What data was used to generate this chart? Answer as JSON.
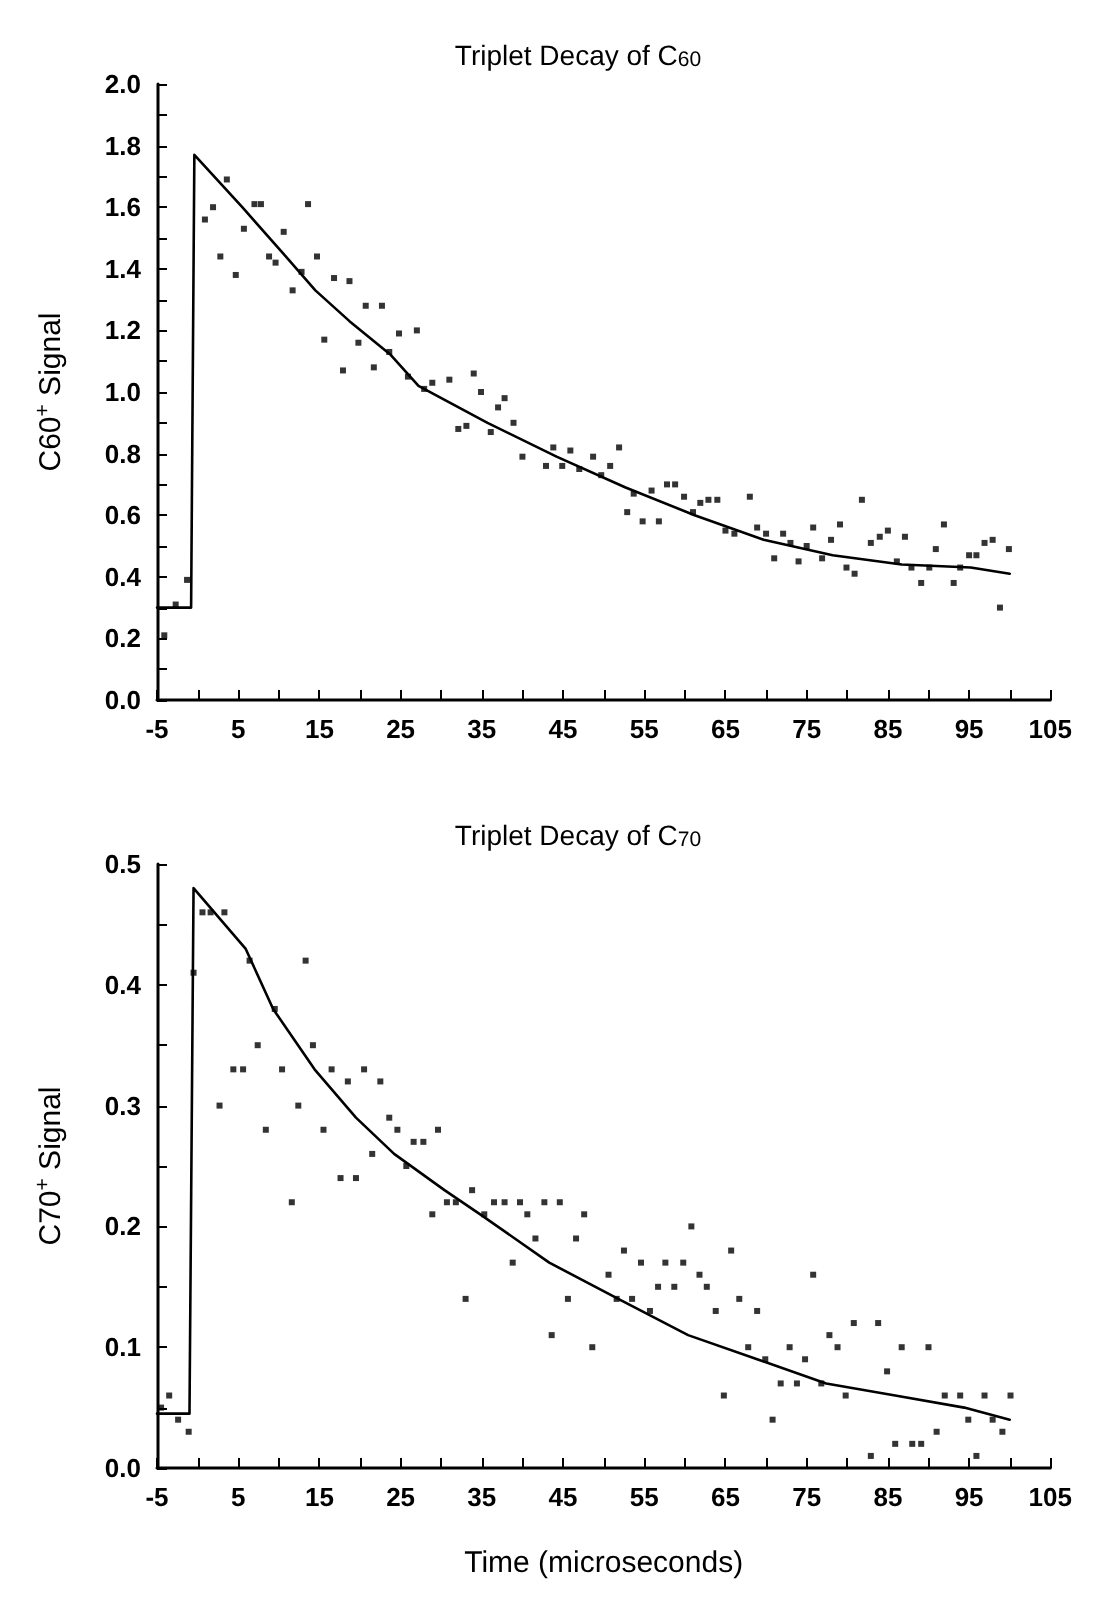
{
  "chart_data": [
    {
      "type": "scatter",
      "title": "Triplet Decay of C$_{60}$",
      "ylabel": "C60$^{+}$ Signal",
      "marker": "square",
      "xlim": [
        -5,
        105
      ],
      "xticks": [
        -5,
        {
          "value": 0,
          "label": null
        },
        5,
        {
          "value": 10,
          "label": null
        },
        15,
        {
          "value": 20,
          "label": null
        },
        25,
        {
          "value": 30,
          "label": null
        },
        35,
        {
          "value": 40,
          "label": null
        },
        45,
        {
          "value": 50,
          "label": null
        },
        55,
        {
          "value": 60,
          "label": null
        },
        65,
        {
          "value": 70,
          "label": null
        },
        75,
        {
          "value": 80,
          "label": null
        },
        85,
        {
          "value": 90,
          "label": null
        },
        95,
        {
          "value": 100,
          "label": null
        },
        105
      ],
      "ylim": [
        0,
        2
      ],
      "yticks": [
        {
          "value": 0,
          "label": "0.0"
        },
        {
          "value": 0.1,
          "label": null
        },
        {
          "value": 0.2,
          "label": "0.2"
        },
        {
          "value": 0.3,
          "label": null
        },
        {
          "value": 0.4,
          "label": "0.4"
        },
        {
          "value": 0.5,
          "label": null
        },
        {
          "value": 0.6,
          "label": "0.6"
        },
        {
          "value": 0.7,
          "label": null
        },
        {
          "value": 0.8,
          "label": "0.8"
        },
        {
          "value": 0.9,
          "label": null
        },
        {
          "value": 1,
          "label": "1.0"
        },
        {
          "value": 1.1,
          "label": null
        },
        {
          "value": 1.2,
          "label": "1.2"
        },
        {
          "value": 1.3,
          "label": null
        },
        {
          "value": 1.4,
          "label": "1.4"
        },
        {
          "value": 1.5,
          "label": null
        },
        {
          "value": 1.6,
          "label": "1.6"
        },
        {
          "value": 1.7,
          "label": null
        },
        {
          "value": 1.8,
          "label": "1.8"
        },
        {
          "value": 1.9,
          "label": null
        },
        {
          "value": 2,
          "label": "2.0"
        }
      ],
      "series": [
        {
          "color": "#000000",
          "x": [
            -4.1,
            -2.7,
            -1.3,
            0.9,
            1.9,
            2.8,
            3.6,
            4.7,
            5.7,
            7.0,
            7.8,
            8.8,
            9.6,
            10.6,
            11.7,
            12.8,
            13.6,
            14.7,
            15.6,
            16.8,
            17.9,
            18.7,
            19.8,
            20.7,
            21.7,
            22.7,
            23.6,
            24.8,
            25.9,
            27.0,
            27.9,
            28.9,
            31.0,
            32.1,
            33.1,
            34.0,
            34.9,
            36.1,
            37.0,
            37.8,
            38.9,
            40.0,
            42.9,
            43.8,
            44.9,
            45.9,
            47.0,
            48.7,
            49.7,
            50.8,
            51.9,
            52.9,
            53.7,
            54.8,
            55.9,
            56.8,
            57.8,
            58.8,
            59.9,
            61.0,
            61.9,
            62.9,
            64.0,
            65.0,
            66.1,
            68.0,
            68.9,
            70.0,
            71.0,
            72.1,
            73.0,
            74.0,
            75.0,
            75.8,
            76.9,
            78.0,
            79.1,
            79.9,
            80.9,
            81.8,
            82.9,
            84.0,
            85.0,
            86.1,
            87.1,
            87.9,
            89.1,
            90.1,
            90.9,
            91.9,
            93.1,
            93.9,
            95.0,
            95.9,
            96.9,
            97.9,
            98.8,
            99.9
          ],
          "values": [
            0.21,
            0.31,
            0.39,
            1.56,
            1.6,
            1.44,
            1.69,
            1.38,
            1.53,
            1.61,
            1.61,
            1.44,
            1.42,
            1.52,
            1.33,
            1.39,
            1.61,
            1.44,
            1.17,
            1.37,
            1.07,
            1.36,
            1.16,
            1.28,
            1.08,
            1.28,
            1.13,
            1.19,
            1.05,
            1.2,
            1.01,
            1.03,
            1.04,
            0.88,
            0.89,
            1.06,
            1.0,
            0.87,
            0.95,
            0.98,
            0.9,
            0.79,
            0.76,
            0.82,
            0.76,
            0.81,
            0.75,
            0.79,
            0.73,
            0.76,
            0.82,
            0.61,
            0.67,
            0.58,
            0.68,
            0.58,
            0.7,
            0.7,
            0.66,
            0.61,
            0.64,
            0.65,
            0.65,
            0.55,
            0.54,
            0.66,
            0.56,
            0.54,
            0.46,
            0.54,
            0.51,
            0.45,
            0.5,
            0.56,
            0.46,
            0.52,
            0.57,
            0.43,
            0.41,
            0.65,
            0.51,
            0.53,
            0.55,
            0.45,
            0.53,
            0.43,
            0.38,
            0.43,
            0.49,
            0.57,
            0.38,
            0.43,
            0.47,
            0.47,
            0.51,
            0.52,
            0.3,
            0.49
          ]
        },
        {
          "type": "line",
          "marker": "none",
          "color": "#000000",
          "x": [
            -5,
            -0.8,
            -0.4,
            5.5,
            10.2,
            14.5,
            18.7,
            23.8,
            27.2,
            35.7,
            44.2,
            52.7,
            61.2,
            69.7,
            78.2,
            86.7,
            95.2,
            100
          ],
          "values": [
            0.3,
            0.3,
            1.77,
            1.6,
            1.46,
            1.33,
            1.23,
            1.12,
            1.02,
            0.9,
            0.79,
            0.69,
            0.6,
            0.52,
            0.47,
            0.44,
            0.43,
            0.41
          ]
        }
      ]
    },
    {
      "type": "scatter",
      "title": "Triplet Decay of C$_{70}$",
      "ylabel": "C70$^{+}$ Signal",
      "xlabel": "Time (microseconds)",
      "marker": "square",
      "xlim": [
        -5,
        105
      ],
      "xticks": [
        -5,
        {
          "value": 0,
          "label": null
        },
        5,
        {
          "value": 10,
          "label": null
        },
        15,
        {
          "value": 20,
          "label": null
        },
        25,
        {
          "value": 30,
          "label": null
        },
        35,
        {
          "value": 40,
          "label": null
        },
        45,
        {
          "value": 50,
          "label": null
        },
        55,
        {
          "value": 60,
          "label": null
        },
        65,
        {
          "value": 70,
          "label": null
        },
        75,
        {
          "value": 80,
          "label": null
        },
        85,
        {
          "value": 90,
          "label": null
        },
        95,
        {
          "value": 100,
          "label": null
        },
        105
      ],
      "ylim": [
        0,
        0.5
      ],
      "yticks": [
        {
          "value": 0,
          "label": "0.0"
        },
        {
          "value": 0.05,
          "label": null
        },
        {
          "value": 0.1,
          "label": "0.1"
        },
        {
          "value": 0.15,
          "label": null
        },
        {
          "value": 0.2,
          "label": "0.2"
        },
        {
          "value": 0.25,
          "label": null
        },
        {
          "value": 0.3,
          "label": "0.3"
        },
        {
          "value": 0.35,
          "label": null
        },
        {
          "value": 0.4,
          "label": "0.4"
        },
        {
          "value": 0.45,
          "label": null
        },
        {
          "value": 0.5,
          "label": "0.5"
        }
      ],
      "series": [
        {
          "color": "#000000",
          "x": [
            -4.5,
            -3.5,
            -2.4,
            -1.1,
            -0.5,
            0.6,
            1.6,
            2.7,
            3.3,
            4.4,
            5.6,
            6.4,
            7.4,
            8.4,
            9.5,
            10.4,
            11.6,
            12.4,
            13.3,
            14.2,
            15.5,
            16.5,
            17.6,
            18.5,
            19.5,
            20.5,
            21.5,
            22.5,
            23.6,
            24.6,
            25.7,
            26.6,
            27.8,
            28.9,
            29.6,
            30.7,
            31.8,
            33.0,
            33.8,
            35.3,
            36.5,
            37.8,
            38.8,
            39.7,
            40.6,
            41.6,
            42.7,
            43.6,
            44.6,
            45.6,
            46.6,
            47.6,
            48.6,
            50.6,
            51.6,
            52.5,
            53.5,
            54.6,
            55.7,
            56.7,
            57.6,
            58.7,
            59.8,
            60.8,
            61.8,
            62.7,
            63.8,
            64.8,
            65.7,
            66.7,
            67.8,
            68.9,
            69.9,
            70.8,
            71.8,
            72.9,
            73.8,
            74.8,
            75.8,
            76.8,
            77.8,
            78.8,
            79.8,
            80.8,
            82.9,
            83.8,
            84.9,
            85.9,
            86.7,
            88.0,
            89.1,
            90.0,
            91.0,
            92.0,
            93.9,
            94.9,
            95.9,
            96.9,
            97.9,
            99.1,
            100.1
          ],
          "values": [
            0.05,
            0.06,
            0.04,
            0.03,
            0.41,
            0.46,
            0.46,
            0.3,
            0.46,
            0.33,
            0.33,
            0.42,
            0.35,
            0.28,
            0.38,
            0.33,
            0.22,
            0.3,
            0.42,
            0.35,
            0.28,
            0.33,
            0.24,
            0.32,
            0.24,
            0.33,
            0.26,
            0.32,
            0.29,
            0.28,
            0.25,
            0.27,
            0.27,
            0.21,
            0.28,
            0.22,
            0.22,
            0.14,
            0.23,
            0.21,
            0.22,
            0.22,
            0.17,
            0.22,
            0.21,
            0.19,
            0.22,
            0.11,
            0.22,
            0.14,
            0.19,
            0.21,
            0.1,
            0.16,
            0.14,
            0.18,
            0.14,
            0.17,
            0.13,
            0.15,
            0.17,
            0.15,
            0.17,
            0.2,
            0.16,
            0.15,
            0.13,
            0.06,
            0.18,
            0.14,
            0.1,
            0.13,
            0.09,
            0.04,
            0.07,
            0.1,
            0.07,
            0.09,
            0.16,
            0.07,
            0.11,
            0.1,
            0.06,
            0.12,
            0.01,
            0.12,
            0.08,
            0.02,
            0.1,
            0.02,
            0.02,
            0.1,
            0.03,
            0.06,
            0.06,
            0.04,
            0.01,
            0.06,
            0.04,
            0.03,
            0.06
          ]
        },
        {
          "type": "line",
          "marker": "none",
          "color": "#000000",
          "x": [
            -5,
            -1,
            -0.5,
            5.9,
            9.3,
            14.4,
            19.5,
            24.2,
            30.4,
            34.8,
            43.3,
            51.8,
            60.4,
            68.9,
            77.4,
            85.9,
            94.4,
            100
          ],
          "values": [
            0.045,
            0.045,
            0.48,
            0.43,
            0.38,
            0.33,
            0.29,
            0.26,
            0.23,
            0.21,
            0.17,
            0.14,
            0.11,
            0.09,
            0.07,
            0.06,
            0.05,
            0.04
          ]
        }
      ]
    }
  ]
}
